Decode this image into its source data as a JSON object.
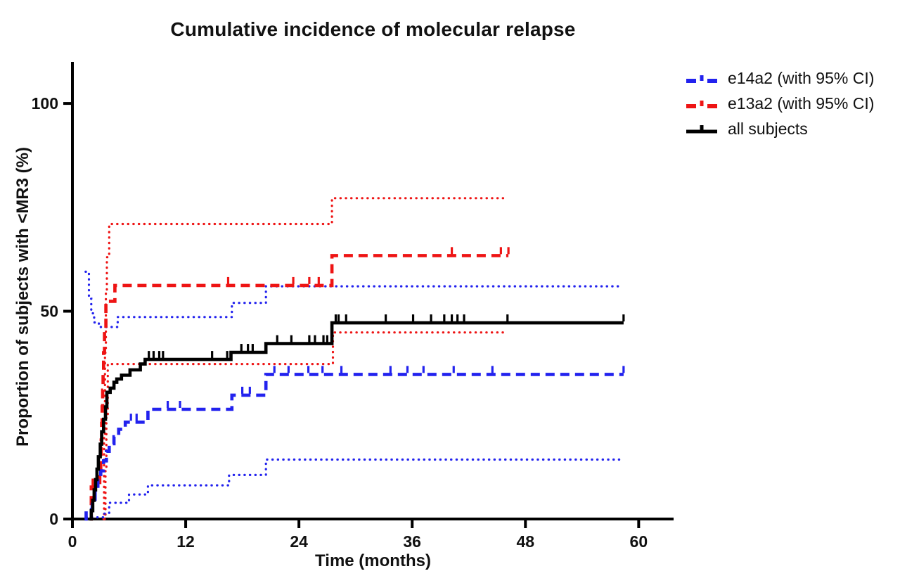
{
  "title": "Cumulative incidence of molecular relapse",
  "x_axis": {
    "label": "Time (months)",
    "ticks": [
      0,
      12,
      24,
      36,
      48,
      60
    ],
    "max": 63.7
  },
  "y_axis": {
    "label": "Proportion of subjects with <MR3 (%)",
    "ticks": [
      0,
      50,
      100
    ],
    "max": 110
  },
  "colors": {
    "e14a2": "#2222EE",
    "e13a2": "#EE1414",
    "all_subjects": "#000000"
  },
  "legend": [
    {
      "label": "e14a2 (with 95% CI)",
      "color": "#2222EE",
      "style": "dashed"
    },
    {
      "label": "e13a2 (with 95% CI)",
      "color": "#EE1414",
      "style": "dashed"
    },
    {
      "label": "all subjects",
      "color": "#000000",
      "style": "solid"
    }
  ],
  "chart_data": {
    "type": "line",
    "subtype": "kaplan-meier-cumulative-incidence-steps",
    "title": "Cumulative incidence of molecular relapse",
    "xlabel": "Time (months)",
    "ylabel": "Proportion of subjects with <MR3 (%)",
    "xlim": [
      0,
      63.7
    ],
    "ylim": [
      0,
      110
    ],
    "x_ticks": [
      0,
      12,
      24,
      36,
      48,
      60
    ],
    "y_ticks": [
      0,
      50,
      100
    ],
    "grid": false,
    "legend_position": "top-right-outside",
    "series": [
      {
        "name": "e13a2 upper 95% CI",
        "color": "#EE1414",
        "style": "dotted",
        "width": 3.2,
        "points": [
          [
            3.3,
            0
          ],
          [
            3.35,
            20
          ],
          [
            3.45,
            40
          ],
          [
            3.55,
            55
          ],
          [
            3.65,
            63
          ],
          [
            3.9,
            71
          ],
          [
            27.5,
            77.2
          ],
          [
            46.0,
            77.2
          ]
        ],
        "censors": []
      },
      {
        "name": "e13a2 lower 95% CI",
        "color": "#EE1414",
        "style": "dotted",
        "width": 3.2,
        "points": [
          [
            3.4,
            0
          ],
          [
            3.5,
            12
          ],
          [
            3.6,
            25
          ],
          [
            3.75,
            37.3
          ],
          [
            27.6,
            44.9
          ],
          [
            46.0,
            44.9
          ]
        ],
        "censors": []
      },
      {
        "name": "e14a2 upper 95% CI",
        "color": "#2222EE",
        "style": "dotted",
        "width": 3.2,
        "points": [
          [
            1.4,
            59.5
          ],
          [
            1.75,
            53
          ],
          [
            2.0,
            49.5
          ],
          [
            2.3,
            47.3
          ],
          [
            2.8,
            46.2
          ],
          [
            4.8,
            48.6
          ],
          [
            16.9,
            52
          ],
          [
            20.5,
            56
          ],
          [
            58.3,
            56
          ]
        ],
        "censors": []
      },
      {
        "name": "e14a2 lower 95% CI",
        "color": "#2222EE",
        "style": "dotted",
        "width": 3.2,
        "points": [
          [
            1.5,
            0.4
          ],
          [
            3.3,
            1.3
          ],
          [
            3.9,
            3.9
          ],
          [
            6.0,
            5.9
          ],
          [
            8.0,
            8.1
          ],
          [
            16.6,
            10.6
          ],
          [
            20.5,
            14.3
          ],
          [
            58.3,
            14.3
          ]
        ],
        "censors": []
      },
      {
        "name": "e13a2",
        "color": "#EE1414",
        "style": "dashed",
        "width": 4.6,
        "points": [
          [
            1.9,
            0
          ],
          [
            2.0,
            7.7
          ],
          [
            2.9,
            11
          ],
          [
            3.0,
            15
          ],
          [
            3.05,
            19
          ],
          [
            3.1,
            23
          ],
          [
            3.15,
            27
          ],
          [
            3.2,
            31
          ],
          [
            3.25,
            35
          ],
          [
            3.3,
            40
          ],
          [
            3.4,
            46
          ],
          [
            3.55,
            52.4
          ],
          [
            4.5,
            56.2
          ],
          [
            27.5,
            63.4
          ],
          [
            46.2,
            63.4
          ]
        ],
        "censors": [
          [
            2.15,
            7.7
          ],
          [
            16.5,
            56.2
          ],
          [
            23.4,
            56.2
          ],
          [
            25.1,
            56.2
          ],
          [
            26.1,
            56.2
          ],
          [
            40.2,
            63.4
          ],
          [
            45.4,
            63.4
          ],
          [
            46.2,
            63.4
          ]
        ]
      },
      {
        "name": "e14a2",
        "color": "#2222EE",
        "style": "dashed",
        "width": 4.6,
        "points": [
          [
            1.3,
            0
          ],
          [
            1.45,
            2.3
          ],
          [
            2.1,
            4.7
          ],
          [
            2.4,
            7
          ],
          [
            2.7,
            9.3
          ],
          [
            3.0,
            11.6
          ],
          [
            3.3,
            14
          ],
          [
            3.6,
            16.3
          ],
          [
            3.9,
            18.1
          ],
          [
            4.4,
            19.8
          ],
          [
            4.9,
            21.6
          ],
          [
            5.6,
            23.3
          ],
          [
            8.0,
            26.4
          ],
          [
            16.9,
            29.8
          ],
          [
            20.5,
            34.8
          ],
          [
            58.4,
            34.8
          ]
        ],
        "censors": [
          [
            6.2,
            23.3
          ],
          [
            6.8,
            23.3
          ],
          [
            10.1,
            26.4
          ],
          [
            11.4,
            26.4
          ],
          [
            18.0,
            29.8
          ],
          [
            18.8,
            29.8
          ],
          [
            21.4,
            34.8
          ],
          [
            22.9,
            34.8
          ],
          [
            25.0,
            34.8
          ],
          [
            26.5,
            34.8
          ],
          [
            28.5,
            34.8
          ],
          [
            33.7,
            34.8
          ],
          [
            35.5,
            34.8
          ],
          [
            37.2,
            34.8
          ],
          [
            40.4,
            34.8
          ],
          [
            44.5,
            34.8
          ],
          [
            58.4,
            34.8
          ]
        ]
      },
      {
        "name": "all subjects",
        "color": "#000000",
        "style": "solid",
        "width": 4.6,
        "points": [
          [
            1.8,
            0
          ],
          [
            2.0,
            2
          ],
          [
            2.15,
            4.5
          ],
          [
            2.3,
            7
          ],
          [
            2.45,
            9.5
          ],
          [
            2.6,
            12
          ],
          [
            2.75,
            15
          ],
          [
            2.95,
            18
          ],
          [
            3.1,
            21
          ],
          [
            3.3,
            24
          ],
          [
            3.5,
            27
          ],
          [
            3.65,
            30.5
          ],
          [
            4.0,
            31.5
          ],
          [
            4.4,
            32.9
          ],
          [
            4.7,
            33.7
          ],
          [
            5.2,
            34.6
          ],
          [
            6.1,
            35.9
          ],
          [
            7.2,
            37.3
          ],
          [
            7.7,
            38.4
          ],
          [
            16.8,
            40.1
          ],
          [
            20.5,
            42.2
          ],
          [
            27.5,
            47.2
          ],
          [
            58.4,
            47.2
          ]
        ],
        "censors": [
          [
            8.1,
            38.4
          ],
          [
            8.6,
            38.4
          ],
          [
            9.2,
            38.4
          ],
          [
            9.6,
            38.4
          ],
          [
            14.8,
            38.4
          ],
          [
            16.4,
            38.4
          ],
          [
            17.9,
            40.1
          ],
          [
            18.6,
            40.1
          ],
          [
            19.1,
            40.1
          ],
          [
            21.7,
            42.2
          ],
          [
            23.2,
            42.2
          ],
          [
            25.1,
            42.2
          ],
          [
            25.7,
            42.2
          ],
          [
            26.6,
            42.2
          ],
          [
            27.0,
            42.2
          ],
          [
            27.9,
            47.2
          ],
          [
            28.2,
            47.2
          ],
          [
            29.0,
            47.2
          ],
          [
            33.2,
            47.2
          ],
          [
            36.1,
            47.2
          ],
          [
            38.0,
            47.2
          ],
          [
            39.4,
            47.2
          ],
          [
            40.2,
            47.2
          ],
          [
            40.8,
            47.2
          ],
          [
            41.5,
            47.2
          ],
          [
            46.1,
            47.2
          ],
          [
            58.4,
            47.2
          ]
        ]
      }
    ]
  }
}
